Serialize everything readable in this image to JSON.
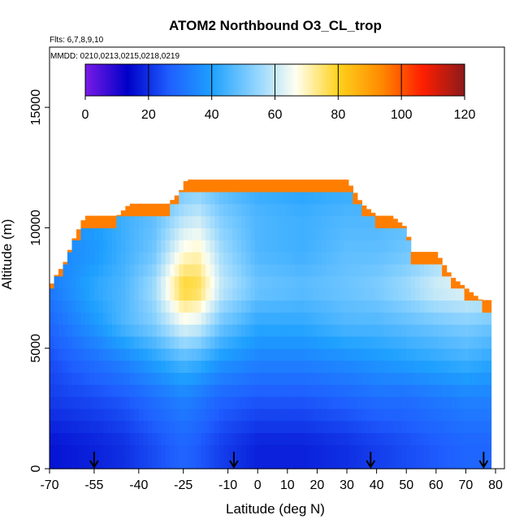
{
  "chart_data": {
    "type": "heatmap",
    "title": "ATOM2 Northbound O3_CL_trop",
    "flights_label": "Flts: 6,7,8,9,10",
    "dates_label": "MMDD: 0210,0213,0215,0218,0219",
    "xlabel": "Latitude (deg N)",
    "ylabel": "Altitude (m)",
    "xlim": [
      -70,
      83
    ],
    "ylim": [
      0,
      17500
    ],
    "x_ticks": [
      "-70",
      "-55",
      "-40",
      "-25",
      "-10",
      "0",
      "10",
      "20",
      "30",
      "40",
      "50",
      "60",
      "70",
      "80"
    ],
    "x_tick_values": [
      -70,
      -55,
      -40,
      -25,
      -10,
      0,
      10,
      20,
      30,
      40,
      50,
      60,
      70,
      80
    ],
    "y_ticks": [
      "0",
      "5000",
      "10000",
      "15000"
    ],
    "y_tick_values": [
      0,
      5000,
      10000,
      15000
    ],
    "colorbar": {
      "min": 0,
      "max": 120,
      "ticks": [
        "0",
        "20",
        "40",
        "60",
        "80",
        "100",
        "120"
      ],
      "tick_values": [
        0,
        20,
        40,
        60,
        80,
        100,
        120
      ],
      "colors": [
        "#7a1be6",
        "#0000c8",
        "#1f5fff",
        "#1ea0ff",
        "#8ad2ff",
        "#fffff0",
        "#ffd21e",
        "#ff8c00",
        "#ff1e00",
        "#8b1a1a"
      ]
    },
    "altitude_bins_m": [
      0,
      500,
      1000,
      1500,
      2000,
      2500,
      3000,
      3500,
      4000,
      4500,
      5000,
      5500,
      6000,
      6500,
      7000,
      7500,
      8000,
      8500,
      9000,
      9500,
      10000,
      10500,
      11000,
      11500,
      12000,
      12500
    ],
    "latitude_knots": [
      -70,
      -55,
      -45,
      -35,
      -25,
      -20,
      -12,
      0,
      15,
      30,
      40,
      50,
      60,
      70,
      78
    ],
    "o3_profile_at_knots": [
      [
        36,
        32,
        34,
        40,
        48,
        50,
        46,
        42,
        40,
        42,
        40,
        42,
        44,
        46,
        48
      ],
      [
        36,
        40,
        44,
        48,
        58,
        60,
        52,
        46,
        44,
        46,
        46,
        48,
        50,
        52,
        52
      ],
      [
        34,
        38,
        44,
        50,
        68,
        70,
        56,
        46,
        44,
        48,
        48,
        50,
        54,
        58,
        58
      ],
      [
        32,
        42,
        46,
        56,
        80,
        78,
        60,
        50,
        48,
        50,
        52,
        56,
        62,
        64,
        64
      ],
      [
        28,
        38,
        46,
        52,
        64,
        62,
        50,
        42,
        42,
        46,
        46,
        48,
        50,
        52,
        50
      ],
      [
        24,
        30,
        34,
        40,
        46,
        44,
        38,
        34,
        34,
        36,
        38,
        40,
        42,
        44,
        42
      ],
      [
        22,
        24,
        26,
        30,
        34,
        32,
        28,
        26,
        26,
        28,
        30,
        30,
        32,
        34,
        34
      ],
      [
        16,
        18,
        20,
        24,
        28,
        26,
        22,
        18,
        18,
        20,
        22,
        24,
        26,
        28,
        28
      ]
    ],
    "profile_altitudes_m": [
      12000,
      10500,
      9000,
      7500,
      6000,
      4500,
      3000,
      1000
    ],
    "top_edge": {
      "latitudes": [
        -70,
        -68,
        -65,
        -62,
        -58,
        -55,
        -52,
        -47,
        -43,
        -40,
        -35,
        -30,
        -26,
        -24,
        -20,
        -15,
        -10,
        0,
        10,
        20,
        30,
        35,
        40,
        45,
        50,
        52,
        55,
        60,
        65,
        70,
        75,
        78
      ],
      "max_altitude_m": [
        7500,
        8000,
        8500,
        9500,
        10500,
        10500,
        10500,
        10500,
        11000,
        11000,
        11000,
        11000,
        11500,
        12000,
        12000,
        12000,
        12000,
        12000,
        12000,
        12000,
        12000,
        11000,
        10500,
        10500,
        10000,
        9000,
        9000,
        9000,
        8000,
        7500,
        7000,
        7000
      ]
    },
    "high_ozone_edge_value": 95,
    "profile_markers_latitude": [
      -55,
      -8,
      38,
      76
    ],
    "grid": false
  }
}
